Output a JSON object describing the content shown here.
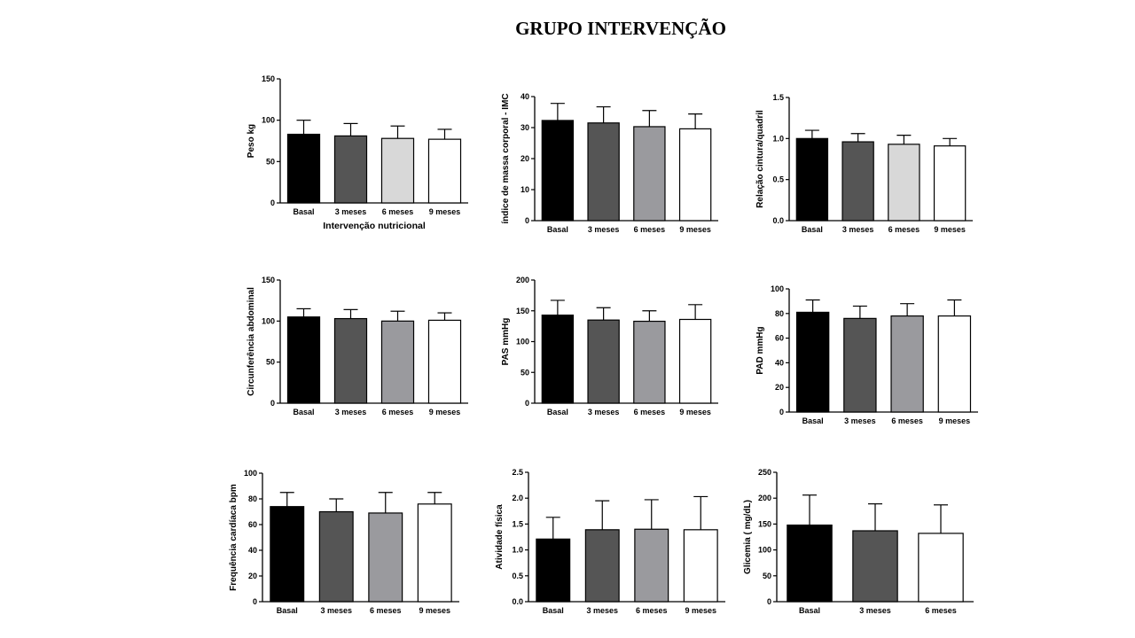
{
  "page_title": "GRUPO INTERVENÇÃO",
  "colors": {
    "basal": "#000000",
    "3_meses": "#555555",
    "6_meses_darker": "#9a9a9e",
    "6_meses_light": "#d8d8d8",
    "9_meses": "#ffffff"
  },
  "chart_data": [
    {
      "type": "bar",
      "ylabel": "Peso kg",
      "xlabel": "Intervenção nutricional",
      "categories": [
        "Basal",
        "3 meses",
        "6 meses",
        "9 meses"
      ],
      "values": [
        83,
        81,
        78,
        77
      ],
      "errors": [
        17,
        15,
        15,
        12
      ],
      "bar_colors": [
        "#000000",
        "#555555",
        "#d8d8d8",
        "#ffffff"
      ],
      "ylim": [
        0,
        150
      ],
      "yticks": [
        "0",
        "50",
        "100",
        "150"
      ],
      "grid": false
    },
    {
      "type": "bar",
      "ylabel": "índice de massa corporal -  IMC",
      "xlabel": "",
      "categories": [
        "Basal",
        "3 meses",
        "6 meses",
        "9 meses"
      ],
      "values": [
        32.3,
        31.5,
        30.3,
        29.6
      ],
      "errors": [
        5.5,
        5.2,
        5.2,
        4.8
      ],
      "bar_colors": [
        "#000000",
        "#555555",
        "#9a9a9e",
        "#ffffff"
      ],
      "ylim": [
        0,
        40
      ],
      "yticks": [
        "0",
        "10",
        "20",
        "30",
        "40"
      ],
      "grid": false
    },
    {
      "type": "bar",
      "ylabel": "Relação cintura/quadril",
      "xlabel": "",
      "categories": [
        "Basal",
        "3 meses",
        "6 meses",
        "9 meses"
      ],
      "values": [
        1.0,
        0.96,
        0.93,
        0.91
      ],
      "errors": [
        0.1,
        0.1,
        0.11,
        0.09
      ],
      "bar_colors": [
        "#000000",
        "#555555",
        "#d8d8d8",
        "#ffffff"
      ],
      "ylim": [
        0,
        1.5
      ],
      "yticks": [
        "0.0",
        "0.5",
        "1.0",
        "1.5"
      ],
      "grid": false
    },
    {
      "type": "bar",
      "ylabel": "Circunferência abdominal",
      "xlabel": "",
      "categories": [
        "Basal",
        "3 meses",
        "6 meses",
        "9 meses"
      ],
      "values": [
        105,
        103,
        100,
        101
      ],
      "errors": [
        10,
        11,
        12,
        9
      ],
      "bar_colors": [
        "#000000",
        "#555555",
        "#9a9a9e",
        "#ffffff"
      ],
      "ylim": [
        0,
        150
      ],
      "yticks": [
        "0",
        "50",
        "100",
        "150"
      ],
      "grid": false
    },
    {
      "type": "bar",
      "ylabel": "PAS mmHg",
      "xlabel": "",
      "categories": [
        "Basal",
        "3 meses",
        "6 meses",
        "9 meses"
      ],
      "values": [
        143,
        135,
        133,
        136
      ],
      "errors": [
        24,
        20,
        17,
        24
      ],
      "bar_colors": [
        "#000000",
        "#555555",
        "#9a9a9e",
        "#ffffff"
      ],
      "ylim": [
        0,
        200
      ],
      "yticks": [
        "0",
        "50",
        "100",
        "150",
        "200"
      ],
      "grid": false
    },
    {
      "type": "bar",
      "ylabel": "PAD mmHg",
      "xlabel": "",
      "categories": [
        "Basal",
        "3 meses",
        "6 meses",
        "9 meses"
      ],
      "values": [
        81,
        76,
        78,
        78
      ],
      "errors": [
        10,
        10,
        10,
        13
      ],
      "bar_colors": [
        "#000000",
        "#555555",
        "#9a9a9e",
        "#ffffff"
      ],
      "ylim": [
        0,
        100
      ],
      "yticks": [
        "0",
        "20",
        "40",
        "60",
        "80",
        "100"
      ],
      "grid": false
    },
    {
      "type": "bar",
      "ylabel": "Frequência cardíaca bpm",
      "xlabel": "",
      "categories": [
        "Basal",
        "3 meses",
        "6 meses",
        "9 meses"
      ],
      "values": [
        74,
        70,
        69,
        76
      ],
      "errors": [
        11,
        10,
        16,
        9
      ],
      "bar_colors": [
        "#000000",
        "#555555",
        "#9a9a9e",
        "#ffffff"
      ],
      "ylim": [
        0,
        100
      ],
      "yticks": [
        "0",
        "20",
        "40",
        "60",
        "80",
        "100"
      ],
      "grid": false
    },
    {
      "type": "bar",
      "ylabel": "Atividade física",
      "xlabel": "",
      "categories": [
        "Basal",
        "3 meses",
        "6 meses",
        "9 meses"
      ],
      "values": [
        1.21,
        1.39,
        1.4,
        1.39
      ],
      "errors": [
        0.42,
        0.56,
        0.57,
        0.64
      ],
      "bar_colors": [
        "#000000",
        "#555555",
        "#9a9a9e",
        "#ffffff"
      ],
      "ylim": [
        0,
        2.5
      ],
      "yticks": [
        "0.0",
        "0.5",
        "1.0",
        "1.5",
        "2.0",
        "2.5"
      ],
      "grid": false
    },
    {
      "type": "bar",
      "ylabel": "Glicemia ( mg/dL)",
      "xlabel": "",
      "categories": [
        "Basal",
        "3 meses",
        "6 meses"
      ],
      "values": [
        148,
        137,
        132
      ],
      "errors": [
        58,
        52,
        55
      ],
      "bar_colors": [
        "#000000",
        "#555555",
        "#ffffff"
      ],
      "ylim": [
        0,
        250
      ],
      "yticks": [
        "0",
        "50",
        "100",
        "150",
        "200",
        "250"
      ],
      "grid": false
    }
  ]
}
